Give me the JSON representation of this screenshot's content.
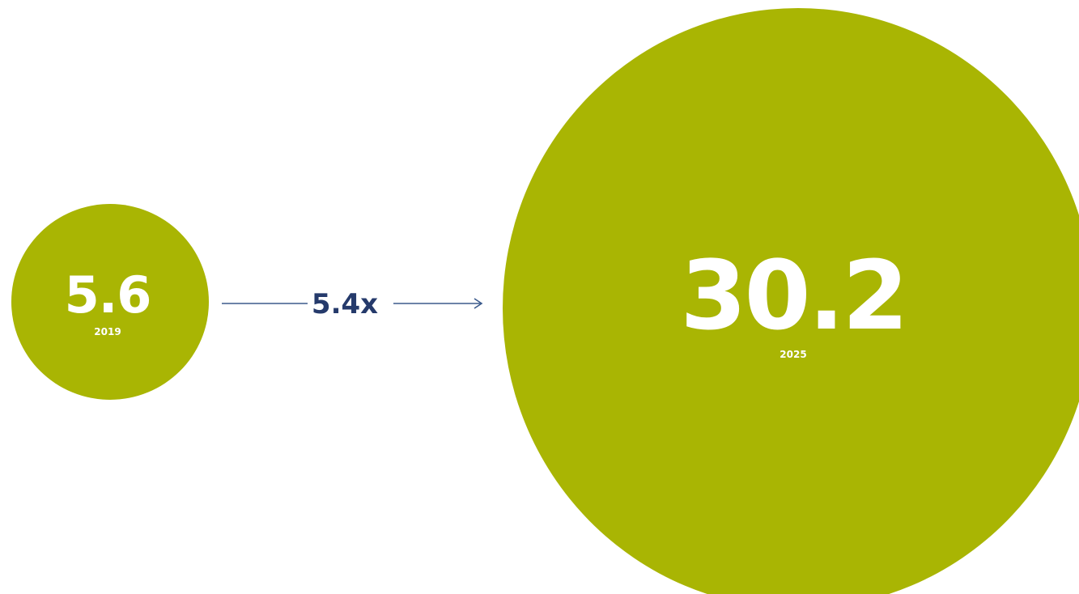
{
  "chart_data": {
    "type": "bubble",
    "title": "",
    "categories": [
      "2019",
      "2025"
    ],
    "values": [
      5.6,
      30.2
    ],
    "value_labels": [
      "5.6",
      "30.2"
    ],
    "annotation": {
      "text": "5.4x",
      "from": "2019",
      "to": "2025"
    },
    "xlabel": "",
    "ylabel": "",
    "grid": false,
    "legend": "none"
  },
  "colors": {
    "bubble": "#a9b503",
    "text_on_bubble": "#ffffff",
    "arrow": "#3b5a8c",
    "multiplier_text": "#253a6b",
    "background": "#ffffff"
  }
}
